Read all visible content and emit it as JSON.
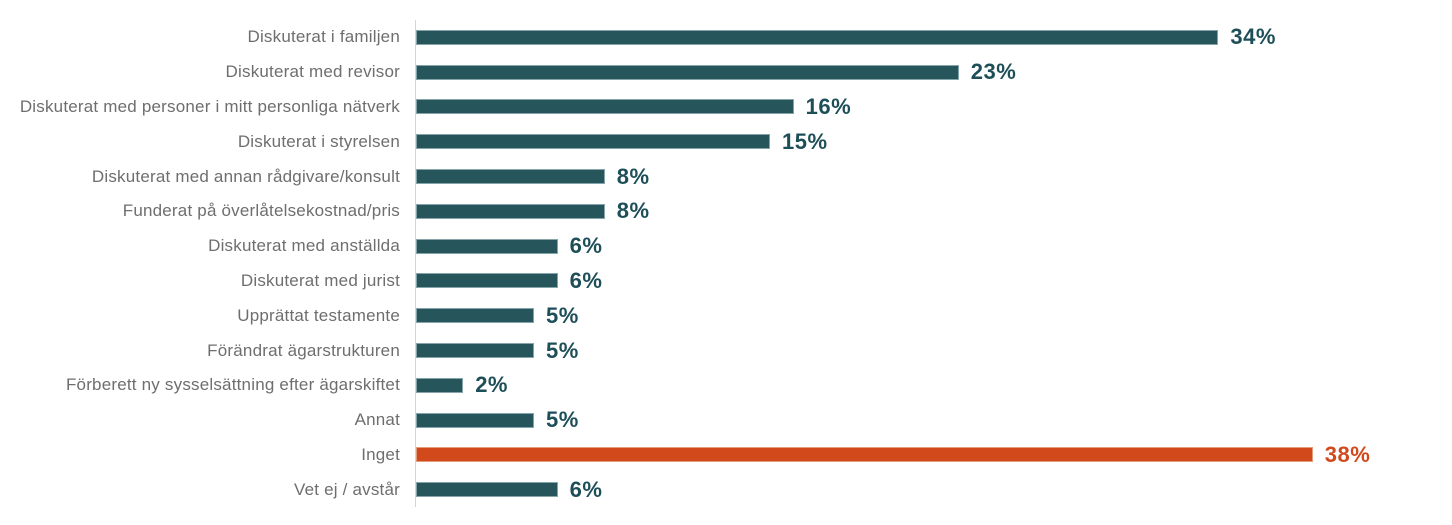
{
  "chart_data": {
    "type": "bar",
    "orientation": "horizontal",
    "title": "",
    "xlabel": "",
    "ylabel": "",
    "grid": false,
    "legend": false,
    "axis_line": "left",
    "xlim": [
      0,
      42
    ],
    "categories": [
      "Diskuterat i familjen",
      "Diskuterat med revisor",
      "Diskuterat med personer i mitt personliga nätverk",
      "Diskuterat i styrelsen",
      "Diskuterat med annan rådgivare/konsult",
      "Funderat på överlåtelsekostnad/pris",
      "Diskuterat med anställda",
      "Diskuterat med jurist",
      "Upprättat testamente",
      "Förändrat ägarstrukturen",
      "Förberett ny sysselsättning efter ägarskiftet",
      "Annat",
      "Inget",
      "Vet ej / avstår"
    ],
    "values": [
      34,
      23,
      16,
      15,
      8,
      8,
      6,
      6,
      5,
      5,
      2,
      5,
      38,
      6
    ],
    "value_labels": [
      "34%",
      "23%",
      "16%",
      "15%",
      "8%",
      "8%",
      "6%",
      "6%",
      "5%",
      "5%",
      "2%",
      "5%",
      "38%",
      "6%"
    ],
    "highlight_index": 12,
    "colors": {
      "bar": "#27555c",
      "value_text": "#1e4f58",
      "highlight": "#d2491c",
      "category_text": "#6e6e6e",
      "axis_line": "#d4d4d4",
      "background": "#ffffff"
    }
  }
}
